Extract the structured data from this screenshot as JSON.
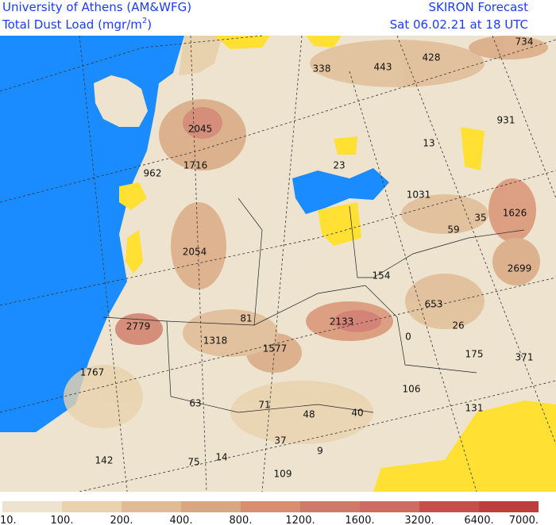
{
  "header": {
    "left_line1": "University of Athens (AM&WFG)",
    "left_line2": "Total Dust Load (mgr/m",
    "left_line2_sup": "2",
    "left_line2_end": ")",
    "right_line1": "SKIRON Forecast",
    "right_line2": "Sat 06.02.21 at 18 UTC"
  },
  "map_labels": [
    "338",
    "443",
    "428",
    "734",
    "2045",
    "931",
    "13",
    "1716",
    "962",
    "23",
    "1031",
    "35",
    "1626",
    "59",
    "2054",
    "2699",
    "154",
    "653",
    "81",
    "2779",
    "2133",
    "26",
    "0",
    "1318",
    "1577",
    "175",
    "371",
    "1767",
    "106",
    "63",
    "71",
    "131",
    "48",
    "40",
    "37",
    "9",
    "142",
    "75",
    "14",
    "109"
  ],
  "colorbar": {
    "labels": [
      "10.",
      "100.",
      "200.",
      "400.",
      "800.",
      "1200.",
      "1600.",
      "3200.",
      "6400.",
      "7000."
    ],
    "colors": [
      "#ede3cf",
      "#e9d2ac",
      "#e0bb93",
      "#d9a67f",
      "#d98f6e",
      "#cf7a66",
      "#cd6c62",
      "#c64f49",
      "#bd3e3c"
    ]
  }
}
